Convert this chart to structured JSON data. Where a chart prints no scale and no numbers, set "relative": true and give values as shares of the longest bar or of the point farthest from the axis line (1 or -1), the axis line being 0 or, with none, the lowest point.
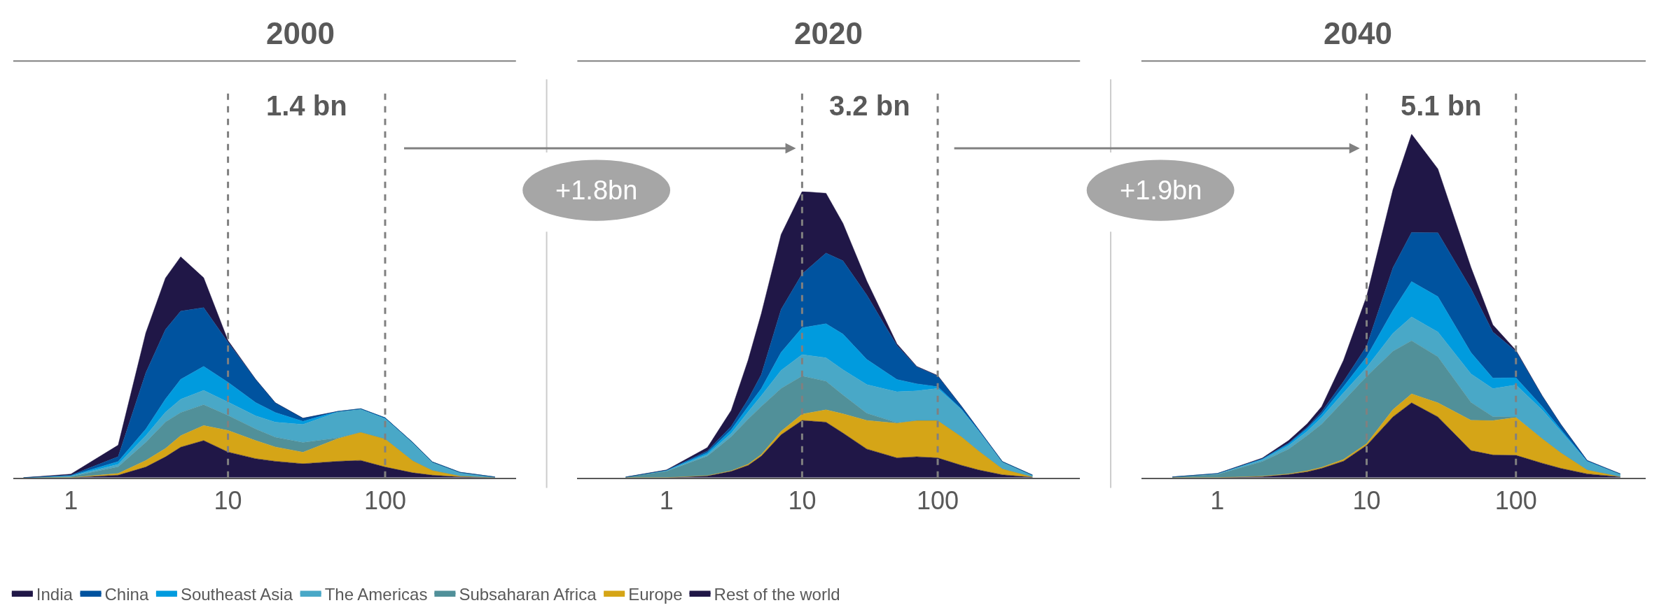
{
  "chart_data": [
    {
      "type": "area",
      "title": "2000",
      "log": "x",
      "stacked": true,
      "relative": true,
      "legend": "bottom",
      "x": [
        0.5,
        1,
        2,
        3,
        4,
        5,
        7,
        10,
        15,
        20,
        30,
        50,
        70,
        100,
        150,
        200,
        300,
        500
      ],
      "xlim": [
        0.43,
        680
      ],
      "xticks": [
        1,
        10,
        100
      ],
      "ref_lines": [
        {
          "axis": "x",
          "value": 10,
          "color": "#808080",
          "line_style": "dashed"
        },
        {
          "axis": "x",
          "value": 100,
          "color": "#808080",
          "line_style": "dashed"
        }
      ],
      "annotations": [
        "1.4 bn"
      ],
      "series": [
        {
          "name": "Rest of the world",
          "color": "#201747",
          "values": [
            0,
            0,
            0.011,
            0.048,
            0.094,
            0.138,
            0.168,
            0.116,
            0.086,
            0.074,
            0.063,
            0.074,
            0.078,
            0.048,
            0.022,
            0.011,
            0.003,
            0
          ]
        },
        {
          "name": "Europe",
          "color": "#d5a517",
          "values": [
            0,
            0,
            0.008,
            0.03,
            0.038,
            0.052,
            0.068,
            0.098,
            0.082,
            0.065,
            0.052,
            0.103,
            0.128,
            0.128,
            0.055,
            0.022,
            0.005,
            0
          ]
        },
        {
          "name": "Subsaharan Africa",
          "color": "#519099",
          "values": [
            0,
            0.005,
            0.03,
            0.082,
            0.12,
            0.105,
            0.094,
            0.068,
            0.052,
            0.044,
            0.044,
            0.003,
            0,
            0,
            0,
            0,
            0,
            0
          ]
        },
        {
          "name": "The Americas",
          "color": "#49a8c7",
          "values": [
            0,
            0.002,
            0.011,
            0.03,
            0.044,
            0.06,
            0.065,
            0.06,
            0.06,
            0.068,
            0.082,
            0.117,
            0.103,
            0.09,
            0.082,
            0.038,
            0.016,
            0.003
          ]
        },
        {
          "name": "Southeast Asia",
          "color": "#009bde",
          "values": [
            0,
            0.002,
            0.013,
            0.03,
            0.06,
            0.09,
            0.109,
            0.09,
            0.06,
            0.044,
            0.014,
            0.003,
            0.003,
            0.005,
            0,
            0,
            0,
            0
          ]
        },
        {
          "name": "China",
          "color": "#00539f",
          "values": [
            0,
            0.002,
            0.022,
            0.255,
            0.315,
            0.309,
            0.266,
            0.181,
            0.105,
            0.044,
            0.014,
            0,
            0,
            0,
            0,
            0,
            0,
            0
          ]
        },
        {
          "name": "India",
          "color": "#201747",
          "values": [
            0,
            0.005,
            0.052,
            0.181,
            0.233,
            0.246,
            0.135,
            0.008,
            0,
            0,
            0,
            0,
            0,
            0,
            0,
            0,
            0,
            0
          ]
        }
      ]
    },
    {
      "type": "area",
      "title": "2020",
      "log": "x",
      "stacked": true,
      "relative": true,
      "x": [
        0.5,
        1,
        2,
        3,
        4,
        5,
        7,
        10,
        15,
        20,
        30,
        50,
        70,
        100,
        150,
        200,
        300,
        500
      ],
      "xlim": [
        0.22,
        1120
      ],
      "xticks": [
        1,
        10,
        100
      ],
      "ref_lines": [
        {
          "axis": "x",
          "value": 10,
          "color": "#808080",
          "line_style": "dashed"
        },
        {
          "axis": "x",
          "value": 100,
          "color": "#808080",
          "line_style": "dashed"
        }
      ],
      "annotations": [
        "3.2 bn",
        "+1.8bn"
      ],
      "series": [
        {
          "color": "#201747",
          "values": [
            0,
            0,
            0.006,
            0.022,
            0.043,
            0.075,
            0.15,
            0.2,
            0.194,
            0.156,
            0.1,
            0.069,
            0.073,
            0.069,
            0.043,
            0.027,
            0.01,
            0.001
          ]
        },
        {
          "color": "#d5a517",
          "values": [
            0,
            0,
            0.001,
            0.002,
            0.004,
            0.006,
            0.012,
            0.022,
            0.043,
            0.067,
            0.1,
            0.121,
            0.127,
            0.131,
            0.1,
            0.067,
            0.021,
            0.002
          ]
        },
        {
          "color": "#519099",
          "values": [
            0.002,
            0.022,
            0.068,
            0.119,
            0.158,
            0.168,
            0.15,
            0.133,
            0.1,
            0.066,
            0.025,
            0.002,
            0,
            0,
            0,
            0,
            0,
            0
          ]
        },
        {
          "color": "#49a8c7",
          "values": [
            0,
            0.002,
            0.006,
            0.012,
            0.025,
            0.037,
            0.063,
            0.075,
            0.082,
            0.088,
            0.1,
            0.108,
            0.103,
            0.112,
            0.094,
            0.069,
            0.025,
            0.006
          ]
        },
        {
          "color": "#009bde",
          "values": [
            0,
            0.001,
            0.006,
            0.012,
            0.019,
            0.025,
            0.063,
            0.094,
            0.119,
            0.125,
            0.088,
            0.043,
            0.025,
            0.006,
            0.002,
            0.002,
            0,
            0
          ]
        },
        {
          "color": "#00539f",
          "values": [
            0,
            0.001,
            0.006,
            0.012,
            0.025,
            0.049,
            0.15,
            0.188,
            0.247,
            0.256,
            0.225,
            0.119,
            0.059,
            0.037,
            0.01,
            0.004,
            0,
            0
          ]
        },
        {
          "color": "#201747",
          "values": [
            0,
            0.001,
            0.012,
            0.056,
            0.137,
            0.213,
            0.262,
            0.288,
            0.209,
            0.131,
            0.049,
            0.006,
            0.002,
            0.002,
            0,
            0,
            0,
            0
          ]
        }
      ]
    },
    {
      "type": "area",
      "title": "2040",
      "log": "x",
      "stacked": true,
      "relative": true,
      "x": [
        0.5,
        1,
        2,
        3,
        4,
        5,
        7,
        10,
        15,
        20,
        30,
        50,
        70,
        100,
        150,
        200,
        300,
        500
      ],
      "xlim": [
        0.31,
        740
      ],
      "xticks": [
        1,
        10,
        100
      ],
      "ref_lines": [
        {
          "axis": "x",
          "value": 10,
          "color": "#808080",
          "line_style": "dashed"
        },
        {
          "axis": "x",
          "value": 100,
          "color": "#808080",
          "line_style": "dashed"
        }
      ],
      "annotations": [
        "5.1 bn",
        "+1.9bn"
      ],
      "series": [
        {
          "color": "#201747",
          "values": [
            0,
            0,
            0.003,
            0.009,
            0.017,
            0.027,
            0.048,
            0.094,
            0.177,
            0.218,
            0.177,
            0.079,
            0.066,
            0.065,
            0.042,
            0.027,
            0.011,
            0.002
          ]
        },
        {
          "color": "#d5a517",
          "values": [
            0,
            0,
            0.001,
            0.002,
            0.003,
            0.003,
            0.005,
            0.005,
            0.021,
            0.026,
            0.041,
            0.088,
            0.1,
            0.11,
            0.072,
            0.046,
            0.012,
            0.001
          ]
        },
        {
          "color": "#519099",
          "values": [
            0.002,
            0.009,
            0.043,
            0.072,
            0.103,
            0.126,
            0.17,
            0.196,
            0.17,
            0.155,
            0.134,
            0.052,
            0.012,
            0.002,
            0,
            0,
            0,
            0
          ]
        },
        {
          "color": "#49a8c7",
          "values": [
            0,
            0.002,
            0.005,
            0.01,
            0.012,
            0.019,
            0.024,
            0.026,
            0.052,
            0.069,
            0.072,
            0.083,
            0.081,
            0.093,
            0.083,
            0.062,
            0.024,
            0.008
          ]
        },
        {
          "color": "#009bde",
          "values": [
            0,
            0.001,
            0.002,
            0.005,
            0.008,
            0.01,
            0.018,
            0.031,
            0.067,
            0.103,
            0.103,
            0.062,
            0.031,
            0.021,
            0.01,
            0.005,
            0.001,
            0
          ]
        },
        {
          "color": "#00539f",
          "values": [
            0,
            0,
            0.001,
            0.003,
            0.004,
            0.007,
            0.015,
            0.031,
            0.124,
            0.143,
            0.186,
            0.186,
            0.134,
            0.077,
            0.031,
            0.015,
            0.002,
            0
          ]
        },
        {
          "color": "#201747",
          "values": [
            0,
            0,
            0.002,
            0.007,
            0.01,
            0.015,
            0.062,
            0.145,
            0.227,
            0.286,
            0.186,
            0.062,
            0.021,
            0.003,
            0,
            0,
            0,
            0
          ]
        }
      ]
    }
  ]
}
